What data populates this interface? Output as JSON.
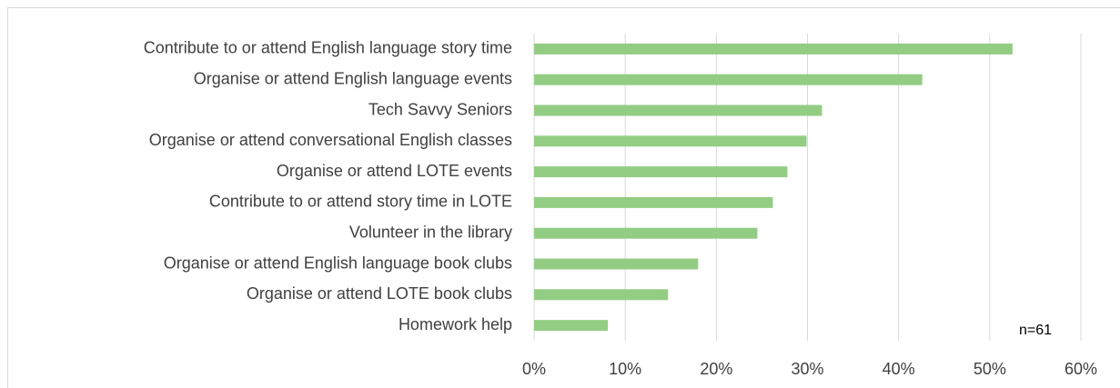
{
  "chart_data": {
    "type": "bar",
    "orientation": "horizontal",
    "categories": [
      "Contribute to or attend English language story time",
      "Organise or attend English language events",
      "Tech Savvy Seniors",
      "Organise or attend conversational English classes",
      "Organise or attend LOTE events",
      "Contribute to or attend story time in LOTE",
      "Volunteer in the library",
      "Organise or attend English language book clubs",
      "Organise or attend LOTE book clubs",
      "Homework help"
    ],
    "values": [
      52.5,
      42.6,
      31.6,
      29.9,
      27.8,
      26.2,
      24.5,
      18.0,
      14.7,
      8.1
    ],
    "color": "#93cd84",
    "xlim": [
      0,
      60
    ],
    "xticks": [
      {
        "value": 0,
        "label": "0%"
      },
      {
        "value": 10,
        "label": "10%"
      },
      {
        "value": 20,
        "label": "20%"
      },
      {
        "value": 30,
        "label": "30%"
      },
      {
        "value": 40,
        "label": "40%"
      },
      {
        "value": 50,
        "label": "50%"
      },
      {
        "value": 60,
        "label": "60%"
      }
    ],
    "grid": true,
    "annotation": "n=61"
  }
}
